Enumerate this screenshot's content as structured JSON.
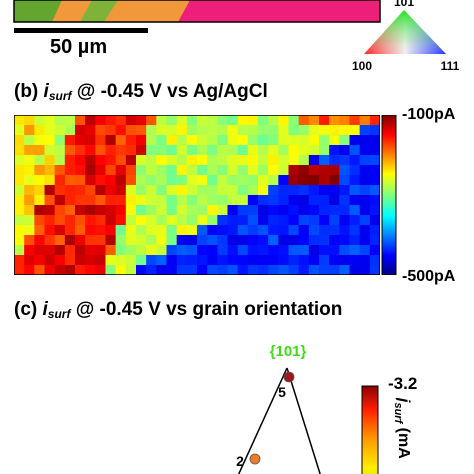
{
  "panel_a": {
    "scale_bar_label": "50 µm",
    "ipf_key": {
      "top": "101",
      "left": "100",
      "right": "111"
    }
  },
  "panel_b": {
    "prefix": "(b) ",
    "symbol": "i",
    "subscript": "surf",
    "suffix": " @ -0.45 V vs Ag/AgCl",
    "colorbar_max": "-100pA",
    "colorbar_min": "-500pA"
  },
  "panel_c": {
    "prefix": "(c) ",
    "symbol": "i",
    "subscript": "surf",
    "suffix": " @ -0.45 V vs grain orientation",
    "top_label": "{101}",
    "points": [
      {
        "id": "5",
        "color": "#a01818"
      },
      {
        "id": "2",
        "color": "#f07a26"
      }
    ],
    "colorbar_value": "-3.2",
    "colorbar_axis_label": "j",
    "colorbar_axis_sub": "surf",
    "colorbar_axis_unit": " (mA"
  },
  "colors": {
    "grain_green": "#63a52f",
    "grain_orange": "#f0983a",
    "grain_magenta": "#ee1f7a",
    "accent_label": "#3ddc14"
  }
}
